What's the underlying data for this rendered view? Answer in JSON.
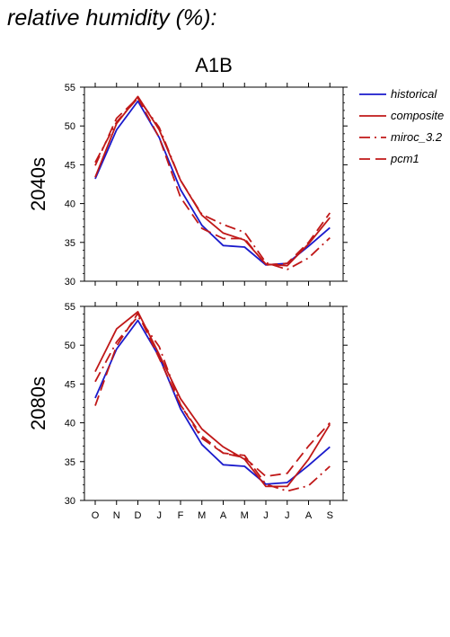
{
  "page_title": "relative humidity (%):",
  "scenario": "A1B",
  "colors": {
    "historical": "#1a1acc",
    "model": "#c01818"
  },
  "legend": [
    {
      "label": "historical",
      "color": "#1a1acc",
      "dash": "solid"
    },
    {
      "label": "composite",
      "color": "#c01818",
      "dash": "solid"
    },
    {
      "label": "miroc_3.2",
      "color": "#c01818",
      "dash": "dashdot"
    },
    {
      "label": "pcm1",
      "color": "#c01818",
      "dash": "dash"
    }
  ],
  "chart_data": [
    {
      "type": "line",
      "panel_label": "2040s",
      "categories": [
        "O",
        "N",
        "D",
        "J",
        "F",
        "M",
        "A",
        "M",
        "J",
        "J",
        "A",
        "S"
      ],
      "ylim": [
        30,
        55
      ],
      "yticks": [
        30,
        35,
        40,
        45,
        50,
        55
      ],
      "series": [
        {
          "name": "historical",
          "color": "#1a1acc",
          "dash": "solid",
          "values": [
            43.2,
            49.5,
            53.2,
            48.5,
            41.8,
            37.2,
            34.6,
            34.4,
            32.1,
            32.3,
            34.5,
            36.9
          ]
        },
        {
          "name": "composite",
          "color": "#c01818",
          "dash": "solid",
          "values": [
            43.4,
            50.3,
            53.8,
            49.5,
            43.0,
            38.5,
            36.2,
            35.3,
            32.2,
            32.0,
            34.8,
            38.2
          ]
        },
        {
          "name": "miroc_3.2",
          "color": "#c01818",
          "dash": "dashdot",
          "values": [
            45.3,
            50.5,
            53.6,
            49.8,
            43.0,
            38.6,
            37.3,
            36.3,
            32.4,
            31.5,
            33.0,
            35.6
          ]
        },
        {
          "name": "pcm1",
          "color": "#c01818",
          "dash": "dash",
          "values": [
            44.9,
            51.0,
            53.6,
            48.5,
            40.8,
            36.8,
            35.5,
            35.5,
            32.1,
            32.3,
            35.0,
            38.8
          ]
        }
      ]
    },
    {
      "type": "line",
      "panel_label": "2080s",
      "categories": [
        "O",
        "N",
        "D",
        "J",
        "F",
        "M",
        "A",
        "M",
        "J",
        "J",
        "A",
        "S"
      ],
      "ylim": [
        30,
        55
      ],
      "yticks": [
        30,
        35,
        40,
        45,
        50,
        55
      ],
      "series": [
        {
          "name": "historical",
          "color": "#1a1acc",
          "dash": "solid",
          "values": [
            43.2,
            49.5,
            53.2,
            48.5,
            41.8,
            37.2,
            34.6,
            34.4,
            32.1,
            32.3,
            34.5,
            36.9
          ]
        },
        {
          "name": "composite",
          "color": "#c01818",
          "dash": "solid",
          "values": [
            46.6,
            52.1,
            54.3,
            48.8,
            43.1,
            39.2,
            36.9,
            35.3,
            31.8,
            31.8,
            35.3,
            39.8
          ]
        },
        {
          "name": "miroc_3.2",
          "color": "#c01818",
          "dash": "dashdot",
          "values": [
            45.3,
            50.4,
            53.7,
            49.8,
            42.3,
            38.3,
            36.1,
            35.8,
            32.1,
            31.2,
            31.9,
            34.4
          ]
        },
        {
          "name": "pcm1",
          "color": "#c01818",
          "dash": "dash",
          "values": [
            42.2,
            49.9,
            54.1,
            48.3,
            42.3,
            38.0,
            36.1,
            35.5,
            33.1,
            33.5,
            37.0,
            40.0
          ]
        }
      ]
    }
  ]
}
